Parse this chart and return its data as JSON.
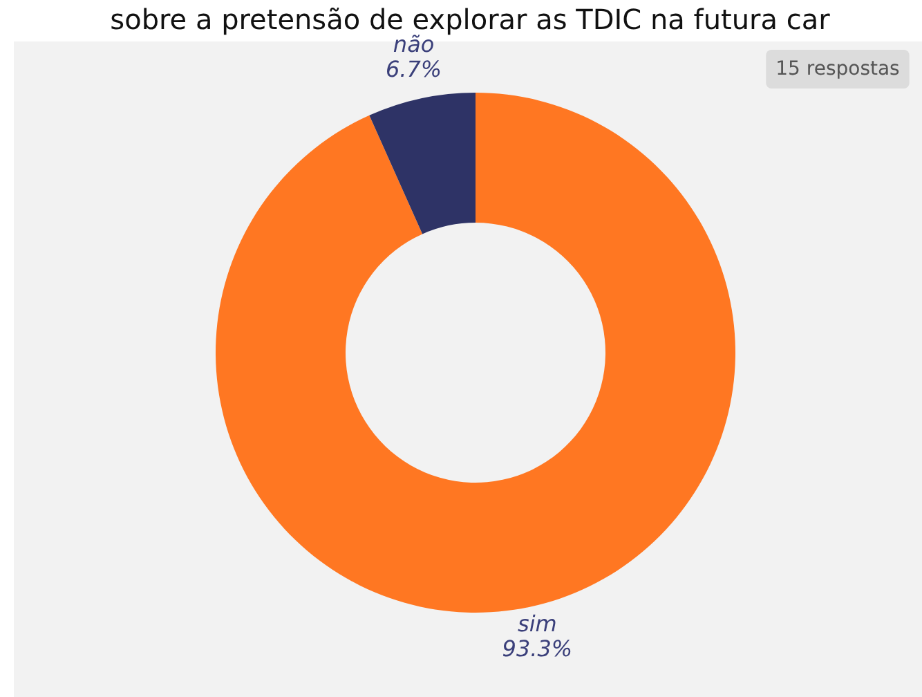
{
  "chart_data": {
    "type": "donut",
    "title": "sobre a pretensão de explorar as TDIC na futura car",
    "categories": [
      "sim",
      "não"
    ],
    "values": [
      93.3,
      6.7
    ],
    "colors": [
      "#ff7722",
      "#2e3366"
    ],
    "value_labels": [
      "93.3%",
      "6.7%"
    ],
    "annotations": [
      "15 respostas"
    ]
  }
}
